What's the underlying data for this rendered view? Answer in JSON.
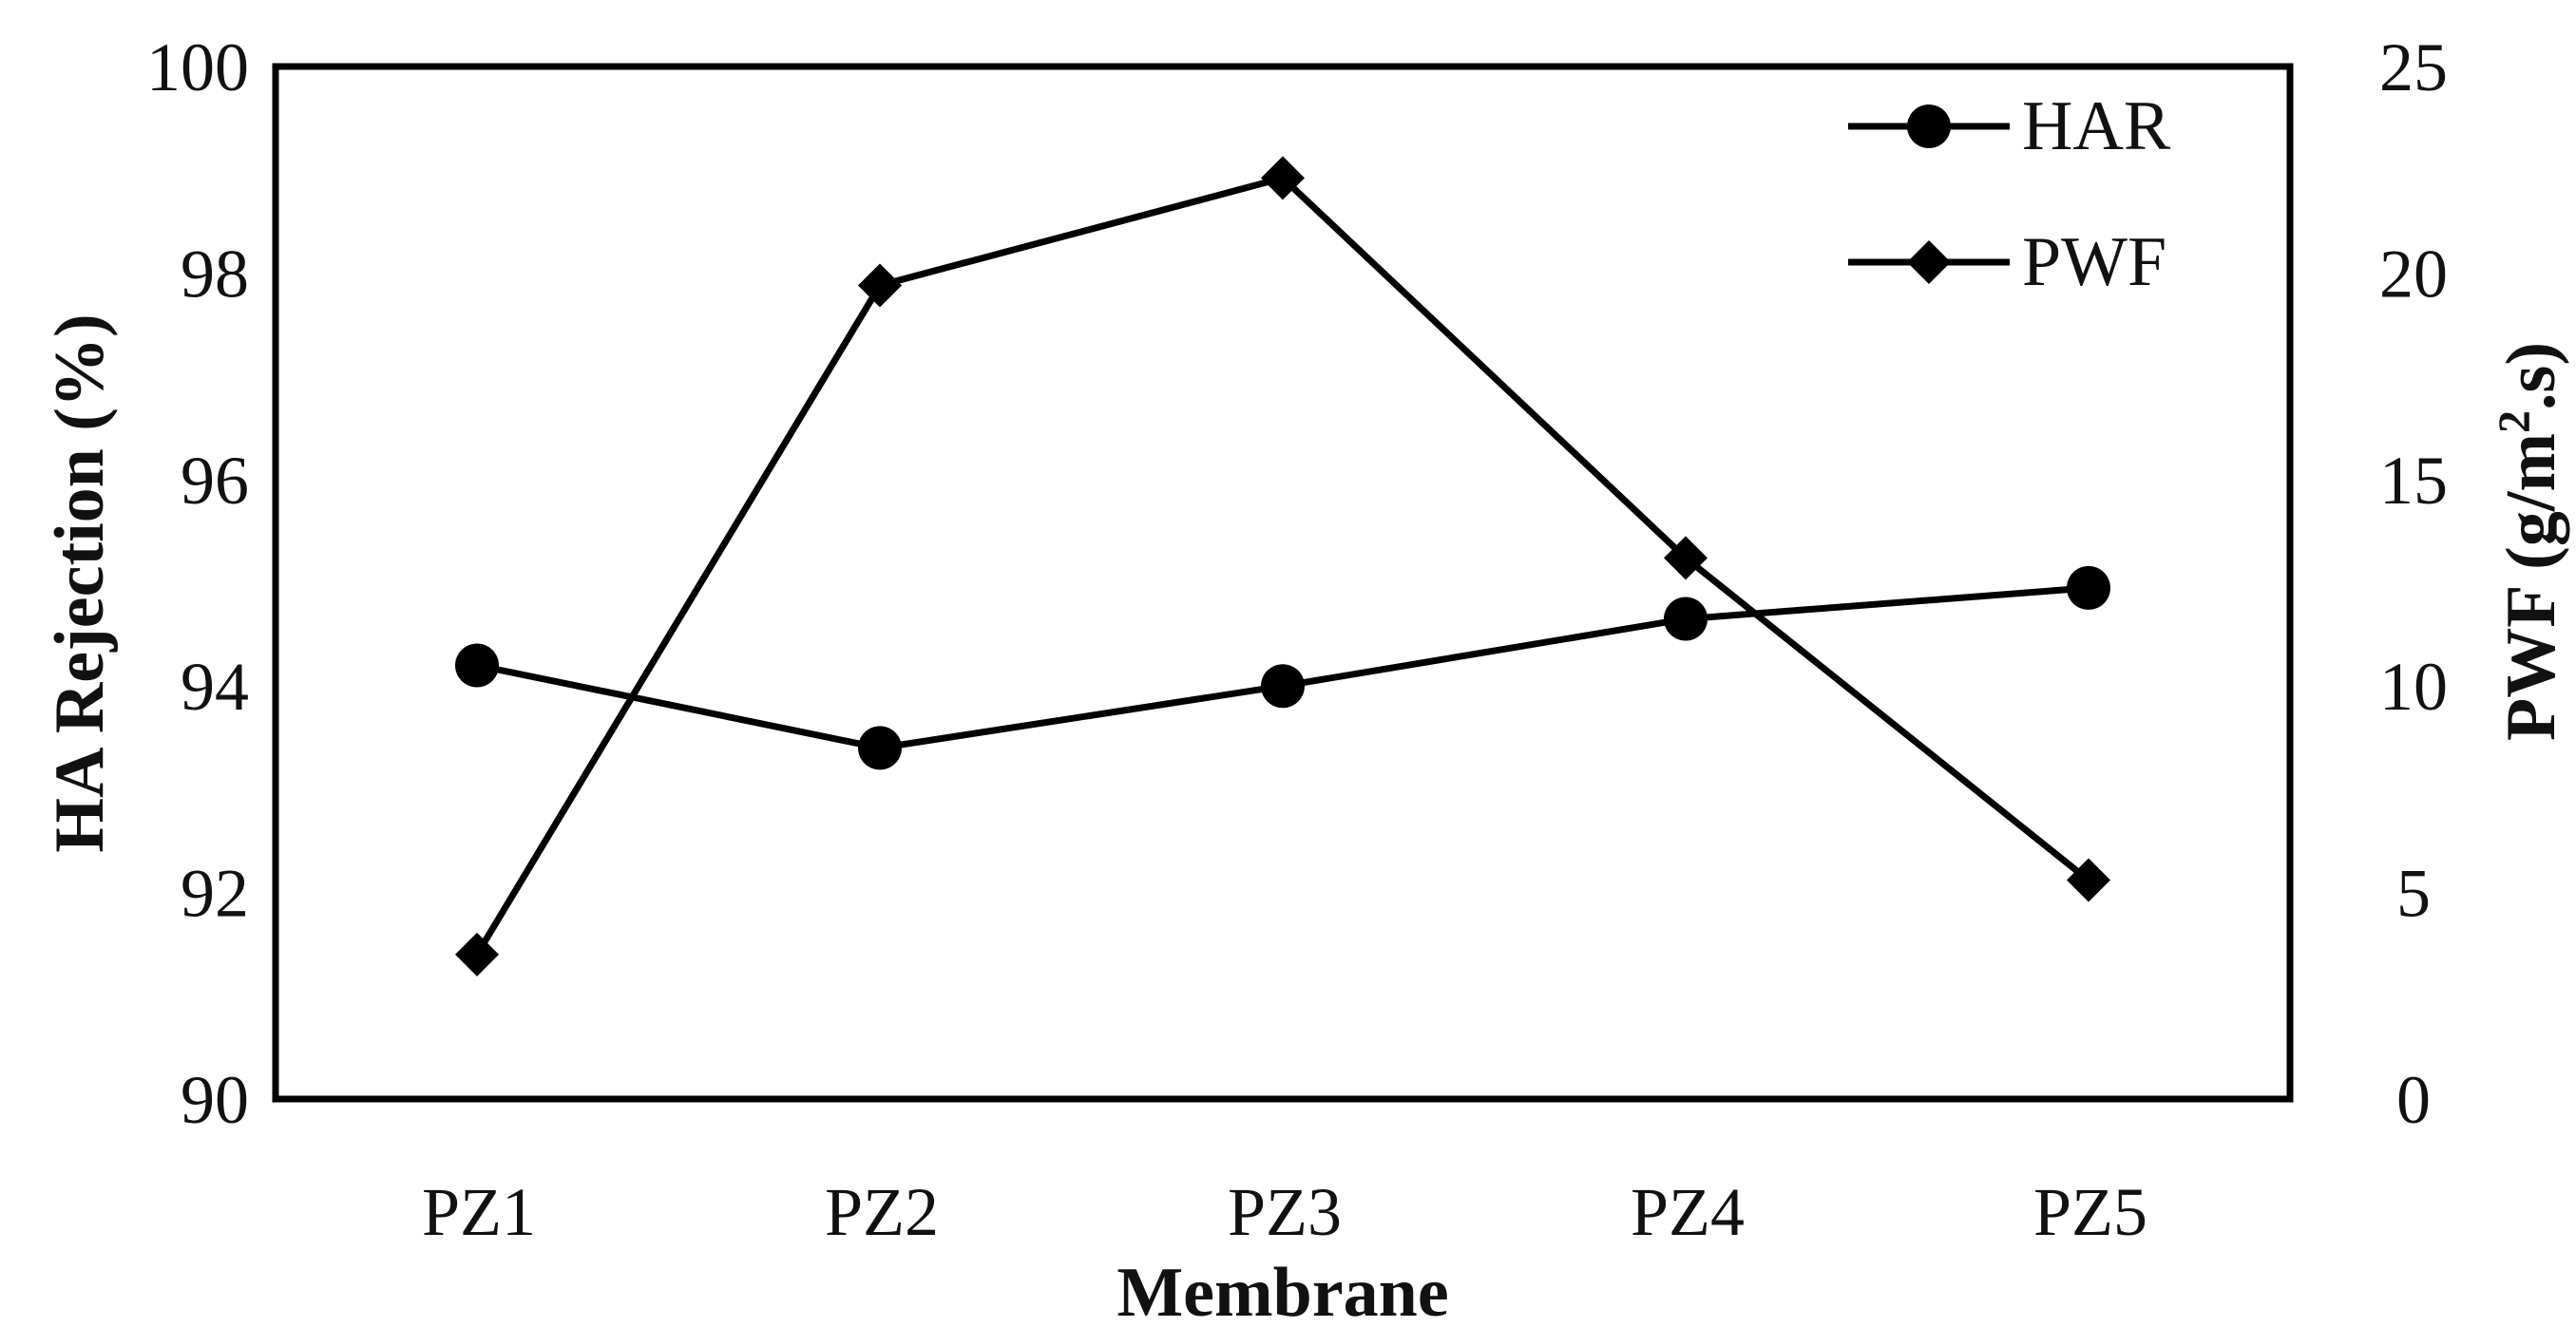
{
  "chart_data": {
    "type": "line",
    "title": "",
    "categories": [
      "PZ1",
      "PZ2",
      "PZ3",
      "PZ4",
      "PZ5"
    ],
    "xlabel": "Membrane",
    "ylabel_left": "HA Rejection (%)",
    "ylabel_right_parts": {
      "base": "PWF (g/m",
      "sup": "2",
      "tail": ".s)"
    },
    "ylim_left": [
      90,
      100
    ],
    "ylim_right": [
      0,
      25
    ],
    "yticks_left": [
      "90",
      "92",
      "94",
      "96",
      "98",
      "100"
    ],
    "yticks_right": [
      "0",
      "5",
      "10",
      "15",
      "20",
      "25"
    ],
    "grid": false,
    "legend_position": "top-right",
    "series": [
      {
        "name": "HAR",
        "axis": "left",
        "marker": "circle",
        "color": "#000000",
        "values": [
          94.2,
          93.4,
          94.0,
          94.65,
          94.95
        ]
      },
      {
        "name": "PWF",
        "axis": "right",
        "marker": "diamond",
        "color": "#000000",
        "values": [
          3.5,
          19.7,
          22.3,
          13.1,
          5.3
        ]
      }
    ]
  }
}
